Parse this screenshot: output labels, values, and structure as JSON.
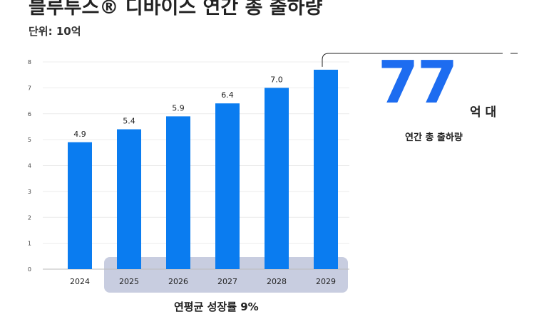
{
  "chart_data": {
    "type": "bar",
    "title": "블루투스® 디바이스 연간 총 출하량",
    "unit_label": "단위: 10억",
    "categories": [
      "2024",
      "2025",
      "2026",
      "2027",
      "2028",
      "2029"
    ],
    "values": [
      4.9,
      5.4,
      5.9,
      6.4,
      7.0,
      7.7
    ],
    "data_labels": [
      "4.9",
      "5.4",
      "5.9",
      "6.4",
      "7.0",
      ""
    ],
    "ylim": [
      0,
      8
    ],
    "yticks": [
      "0",
      "1",
      "2",
      "3",
      "4",
      "5",
      "6",
      "7",
      "8"
    ],
    "grid": true,
    "bar_color": "#0a7cf0",
    "highlight_color": "#c8cde0"
  },
  "callout": {
    "big_number": "77",
    "big_unit": "억 대",
    "sub_text": "연간 총 출하량",
    "number_color": "#1d6cf0"
  },
  "footer": {
    "text": "연평균 성장률 9%"
  }
}
